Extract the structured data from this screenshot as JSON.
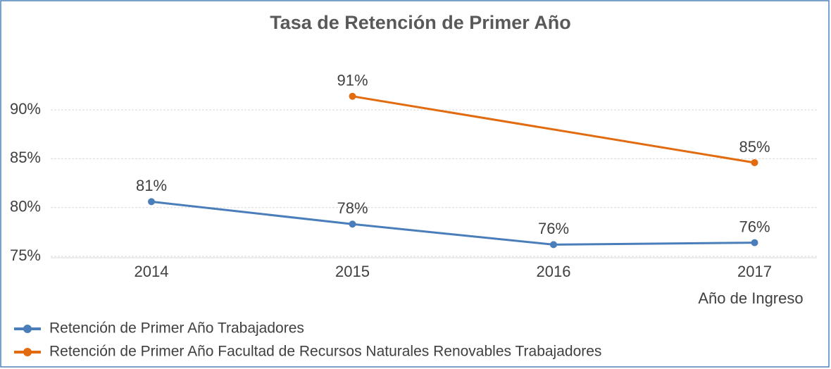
{
  "chart_data": {
    "type": "line",
    "title": "Tasa de Retención de Primer Año",
    "x_label": "Año de Ingreso",
    "categories": [
      "2014",
      "2015",
      "2016",
      "2017"
    ],
    "series": [
      {
        "name": "Retención de Primer Año Trabajadores",
        "color": "#4a7ebb",
        "values": [
          80.6,
          78.3,
          76.2,
          76.4
        ],
        "value_labels": [
          "81%",
          "78%",
          "76%",
          "76%"
        ]
      },
      {
        "name": "Retención de Primer Año Facultad de Recursos Naturales Renovables Trabajadores",
        "color": "#e26b10",
        "values": [
          null,
          91.4,
          null,
          84.6
        ],
        "value_labels": [
          null,
          "91%",
          null,
          "85%"
        ]
      }
    ],
    "span_gaps": true,
    "ylim": [
      75,
      96
    ],
    "yticks": [
      {
        "value": 75,
        "label": "75%"
      },
      {
        "value": 80,
        "label": "80%"
      },
      {
        "value": 85,
        "label": "85%"
      },
      {
        "value": 90,
        "label": "90%"
      }
    ],
    "grid": true,
    "legend": "bottom"
  }
}
